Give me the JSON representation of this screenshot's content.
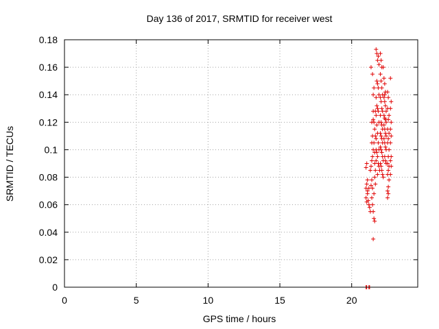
{
  "chart_data": {
    "type": "scatter",
    "title": "Day 136 of 2017, SRMTID for receiver west",
    "xlabel": "GPS time / hours",
    "ylabel": "SRMTID / TECUs",
    "xlim": [
      0,
      24.6
    ],
    "ylim": [
      0,
      0.18
    ],
    "xticks": [
      "0",
      "5",
      "10",
      "15",
      "20"
    ],
    "xtick_values": [
      0,
      5,
      10,
      15,
      20
    ],
    "yticks": [
      "0",
      "0.02",
      "0.04",
      "0.06",
      "0.08",
      "0.1",
      "0.12",
      "0.14",
      "0.16",
      "0.18"
    ],
    "ytick_values": [
      0,
      0.02,
      0.04,
      0.06,
      0.08,
      0.1,
      0.12,
      0.14,
      0.16,
      0.18
    ],
    "grid": true,
    "marker": "+",
    "color": "#e00000",
    "series": [
      {
        "points": [
          [
            21.0,
            0.0
          ],
          [
            21.05,
            0.0
          ],
          [
            21.2,
            0.0
          ],
          [
            21.25,
            0.0
          ],
          [
            21.0,
            0.087
          ],
          [
            21.05,
            0.09
          ],
          [
            21.1,
            0.078
          ],
          [
            21.0,
            0.072
          ],
          [
            21.05,
            0.075
          ],
          [
            21.1,
            0.068
          ],
          [
            21.0,
            0.065
          ],
          [
            21.15,
            0.063
          ],
          [
            21.05,
            0.062
          ],
          [
            21.2,
            0.06
          ],
          [
            21.25,
            0.058
          ],
          [
            21.3,
            0.055
          ],
          [
            21.1,
            0.07
          ],
          [
            21.2,
            0.072
          ],
          [
            21.3,
            0.085
          ],
          [
            21.35,
            0.088
          ],
          [
            21.4,
            0.078
          ],
          [
            21.35,
            0.074
          ],
          [
            21.45,
            0.072
          ],
          [
            21.4,
            0.065
          ],
          [
            21.45,
            0.06
          ],
          [
            21.5,
            0.055
          ],
          [
            21.55,
            0.05
          ],
          [
            21.6,
            0.048
          ],
          [
            21.5,
            0.035
          ],
          [
            21.4,
            0.092
          ],
          [
            21.45,
            0.095
          ],
          [
            21.5,
            0.1
          ],
          [
            21.4,
            0.105
          ],
          [
            21.45,
            0.11
          ],
          [
            21.5,
            0.122
          ],
          [
            21.4,
            0.12
          ],
          [
            21.35,
            0.16
          ],
          [
            21.45,
            0.155
          ],
          [
            21.5,
            0.14
          ],
          [
            21.55,
            0.145
          ],
          [
            21.5,
            0.128
          ],
          [
            21.55,
            0.12
          ],
          [
            21.6,
            0.115
          ],
          [
            21.55,
            0.105
          ],
          [
            21.6,
            0.098
          ],
          [
            21.6,
            0.09
          ],
          [
            21.65,
            0.085
          ],
          [
            21.6,
            0.08
          ],
          [
            21.65,
            0.075
          ],
          [
            21.55,
            0.068
          ],
          [
            21.7,
            0.173
          ],
          [
            21.75,
            0.17
          ],
          [
            21.8,
            0.165
          ],
          [
            21.85,
            0.168
          ],
          [
            21.9,
            0.162
          ],
          [
            21.75,
            0.15
          ],
          [
            21.8,
            0.148
          ],
          [
            21.7,
            0.138
          ],
          [
            21.85,
            0.145
          ],
          [
            21.9,
            0.14
          ],
          [
            21.75,
            0.132
          ],
          [
            21.8,
            0.13
          ],
          [
            21.7,
            0.125
          ],
          [
            21.85,
            0.128
          ],
          [
            21.9,
            0.12
          ],
          [
            21.75,
            0.118
          ],
          [
            21.8,
            0.112
          ],
          [
            21.7,
            0.108
          ],
          [
            21.85,
            0.105
          ],
          [
            21.9,
            0.1
          ],
          [
            21.75,
            0.098
          ],
          [
            21.8,
            0.095
          ],
          [
            21.7,
            0.092
          ],
          [
            21.85,
            0.09
          ],
          [
            21.9,
            0.088
          ],
          [
            21.95,
            0.085
          ],
          [
            21.8,
            0.082
          ],
          [
            21.7,
            0.1
          ],
          [
            21.65,
            0.11
          ],
          [
            21.65,
            0.128
          ],
          [
            22.0,
            0.17
          ],
          [
            22.05,
            0.165
          ],
          [
            22.1,
            0.16
          ],
          [
            22.0,
            0.155
          ],
          [
            22.05,
            0.15
          ],
          [
            22.1,
            0.145
          ],
          [
            22.15,
            0.14
          ],
          [
            22.0,
            0.138
          ],
          [
            22.05,
            0.135
          ],
          [
            22.1,
            0.13
          ],
          [
            22.15,
            0.128
          ],
          [
            22.0,
            0.125
          ],
          [
            22.05,
            0.12
          ],
          [
            22.1,
            0.118
          ],
          [
            22.15,
            0.115
          ],
          [
            22.0,
            0.112
          ],
          [
            22.05,
            0.11
          ],
          [
            22.1,
            0.108
          ],
          [
            22.15,
            0.105
          ],
          [
            22.0,
            0.102
          ],
          [
            22.05,
            0.1
          ],
          [
            22.1,
            0.098
          ],
          [
            22.15,
            0.095
          ],
          [
            22.2,
            0.092
          ],
          [
            22.0,
            0.09
          ],
          [
            22.05,
            0.088
          ],
          [
            22.1,
            0.085
          ],
          [
            22.15,
            0.082
          ],
          [
            22.2,
            0.08
          ],
          [
            22.25,
            0.152
          ],
          [
            22.3,
            0.148
          ],
          [
            22.35,
            0.142
          ],
          [
            22.25,
            0.138
          ],
          [
            22.3,
            0.135
          ],
          [
            22.35,
            0.132
          ],
          [
            22.4,
            0.128
          ],
          [
            22.25,
            0.125
          ],
          [
            22.3,
            0.123
          ],
          [
            22.35,
            0.122
          ],
          [
            22.4,
            0.12
          ],
          [
            22.25,
            0.118
          ],
          [
            22.3,
            0.115
          ],
          [
            22.35,
            0.112
          ],
          [
            22.4,
            0.11
          ],
          [
            22.25,
            0.108
          ],
          [
            22.3,
            0.105
          ],
          [
            22.35,
            0.102
          ],
          [
            22.4,
            0.1
          ],
          [
            22.3,
            0.095
          ],
          [
            22.35,
            0.092
          ],
          [
            22.4,
            0.09
          ],
          [
            22.3,
            0.14
          ],
          [
            22.2,
            0.16
          ],
          [
            22.5,
            0.142
          ],
          [
            22.55,
            0.138
          ],
          [
            22.5,
            0.13
          ],
          [
            22.6,
            0.125
          ],
          [
            22.55,
            0.122
          ],
          [
            22.5,
            0.115
          ],
          [
            22.6,
            0.112
          ],
          [
            22.55,
            0.108
          ],
          [
            22.5,
            0.105
          ],
          [
            22.6,
            0.1
          ],
          [
            22.55,
            0.095
          ],
          [
            22.5,
            0.09
          ],
          [
            22.6,
            0.088
          ],
          [
            22.55,
            0.085
          ],
          [
            22.5,
            0.082
          ],
          [
            22.6,
            0.078
          ],
          [
            22.55,
            0.073
          ],
          [
            22.5,
            0.07
          ],
          [
            22.55,
            0.068
          ],
          [
            22.5,
            0.065
          ],
          [
            22.7,
            0.152
          ],
          [
            22.75,
            0.135
          ],
          [
            22.7,
            0.13
          ],
          [
            22.75,
            0.12
          ],
          [
            22.7,
            0.115
          ],
          [
            22.75,
            0.11
          ],
          [
            22.7,
            0.105
          ],
          [
            22.75,
            0.095
          ],
          [
            22.7,
            0.092
          ],
          [
            22.75,
            0.088
          ],
          [
            22.7,
            0.082
          ]
        ]
      }
    ]
  }
}
